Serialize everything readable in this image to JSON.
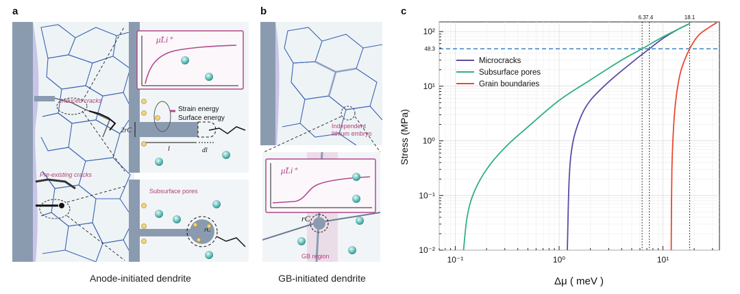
{
  "panel_a": {
    "letter": "a",
    "caption": "Anode-initiated dendrite",
    "label_induced": "Induced cracks",
    "label_preexisting": "Pre-existing cracks",
    "inset_mu_label": "μ̃Li⁺",
    "strain_energy": "Strain energy",
    "surface_energy": "Surface energy",
    "two_rc": "2rC",
    "l": "l",
    "dl": "dl",
    "subsurface_pores": "Subsurface pores",
    "rc": "rC"
  },
  "panel_b": {
    "letter": "b",
    "caption": "GB-initiated dendrite",
    "independent_line1": "Independent",
    "independent_line2": "lithium embryo",
    "inset_mu_label": "μ̃Li⁺",
    "rc": "rC",
    "gb_region": "GB region"
  },
  "panel_c": {
    "letter": "c",
    "ylabel": "Stress (MPa)",
    "xlabel": "Δμ ( meV )"
  },
  "chart_data": {
    "type": "line",
    "title": "",
    "xlabel": "Δμ ( meV )",
    "ylabel": "Stress (MPa)",
    "x_scale": "log",
    "y_scale": "log",
    "xlim": [
      0.07,
      35
    ],
    "ylim": [
      0.01,
      150
    ],
    "x_ticks": [
      "10⁻¹",
      "10⁰",
      "10¹"
    ],
    "y_ticks": [
      "10⁻²",
      "10⁻¹",
      "10⁰",
      "10¹",
      "10²"
    ],
    "legend_position": "top-left",
    "grid": true,
    "series": [
      {
        "name": "Microcracks",
        "color": "#5a4aa6",
        "points": [
          [
            1.2,
            0.01
          ],
          [
            1.25,
            0.2
          ],
          [
            1.35,
            0.9
          ],
          [
            1.6,
            2.6
          ],
          [
            2.0,
            5.5
          ],
          [
            3.0,
            12
          ],
          [
            5.0,
            27
          ],
          [
            7.4,
            48.3
          ],
          [
            10,
            75
          ],
          [
            14,
            110
          ],
          [
            18.1,
            140
          ]
        ]
      },
      {
        "name": "Subsurface pores",
        "color": "#2fae85",
        "points": [
          [
            0.12,
            0.01
          ],
          [
            0.13,
            0.04
          ],
          [
            0.15,
            0.11
          ],
          [
            0.2,
            0.3
          ],
          [
            0.3,
            0.75
          ],
          [
            0.5,
            1.8
          ],
          [
            1.0,
            5.5
          ],
          [
            2.0,
            13
          ],
          [
            4.0,
            30
          ],
          [
            6.3,
            48.3
          ],
          [
            10,
            80
          ],
          [
            18.1,
            140
          ]
        ]
      },
      {
        "name": "Grain boundaries",
        "color": "#e8472e",
        "points": [
          [
            12,
            0.01
          ],
          [
            12.2,
            0.3
          ],
          [
            12.7,
            2
          ],
          [
            13.5,
            7
          ],
          [
            15,
            20
          ],
          [
            18.1,
            48.3
          ],
          [
            22,
            85
          ],
          [
            28,
            120
          ],
          [
            33,
            145
          ]
        ]
      }
    ],
    "reference_lines": {
      "horizontal": {
        "y": 48.3,
        "label": "48.3",
        "style": "dashed",
        "color": "#3a86c9"
      },
      "vertical": [
        {
          "x": 6.3,
          "label": "6.3"
        },
        {
          "x": 7.4,
          "label": "7.4"
        },
        {
          "x": 18.1,
          "label": "18.1"
        }
      ]
    }
  }
}
